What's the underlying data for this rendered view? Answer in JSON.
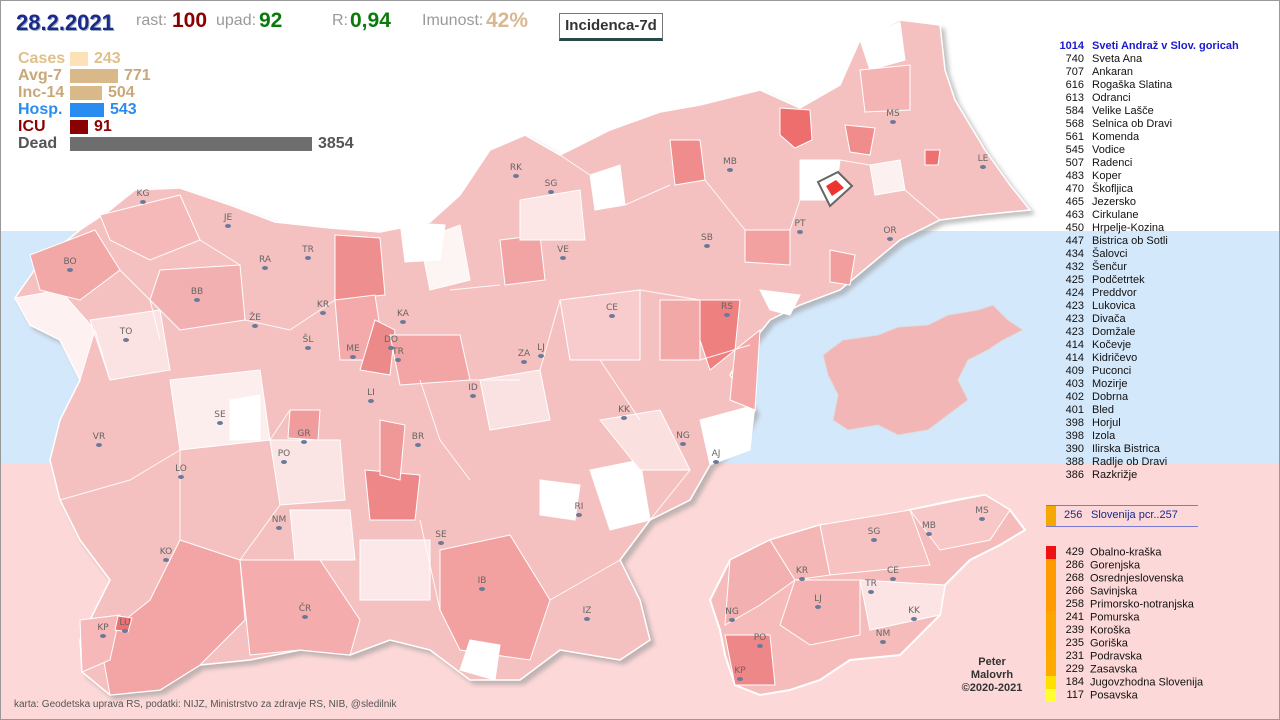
{
  "header": {
    "date": "28.2.2021",
    "rast_label": "rast:",
    "rast_value": "100",
    "upad_label": "upad:",
    "upad_value": "92",
    "r_label": "R:",
    "r_value": "0,94",
    "imunost_label": "Imunost:",
    "imunost_value": "42%",
    "incidence_button": "Incidenca-7d"
  },
  "stats": [
    {
      "label": "Cases",
      "value": "243",
      "color": "#fde2b8",
      "label_color": "#e0c08a",
      "val_color": "#e0c08a",
      "fraction": 0.063
    },
    {
      "label": "Avg-7",
      "value": "771",
      "color": "#d9b98a",
      "label_color": "#c8a878",
      "val_color": "#c8a878",
      "fraction": 0.2
    },
    {
      "label": "Inc-14",
      "value": "504",
      "color": "#d9b98a",
      "label_color": "#c8a878",
      "val_color": "#c8a878",
      "fraction": 0.131
    },
    {
      "label": "Hosp.",
      "value": "543",
      "color": "#2a8cf0",
      "label_color": "#2a8cf0",
      "val_color": "#2a8cf0",
      "fraction": 0.141
    },
    {
      "label": "ICU",
      "value": "91",
      "color": "#8b0000",
      "label_color": "#8b0000",
      "val_color": "#8b0000",
      "fraction": 0.024
    },
    {
      "label": "Dead",
      "value": "3854",
      "color": "#6e6e6e",
      "label_color": "#555",
      "val_color": "#555",
      "fraction": 1.0
    }
  ],
  "ranking": [
    {
      "v": "1014",
      "name": "Sveti Andraž v Slov. goricah",
      "highlight": true
    },
    {
      "v": "740",
      "name": "Sveta Ana"
    },
    {
      "v": "707",
      "name": "Ankaran"
    },
    {
      "v": "616",
      "name": "Rogaška Slatina"
    },
    {
      "v": "613",
      "name": "Odranci"
    },
    {
      "v": "584",
      "name": "Velike Lašče"
    },
    {
      "v": "568",
      "name": "Selnica ob Dravi"
    },
    {
      "v": "561",
      "name": "Komenda"
    },
    {
      "v": "545",
      "name": "Vodice"
    },
    {
      "v": "507",
      "name": "Radenci"
    },
    {
      "v": "483",
      "name": "Koper"
    },
    {
      "v": "470",
      "name": "Škofljica"
    },
    {
      "v": "465",
      "name": "Jezersko"
    },
    {
      "v": "463",
      "name": "Cirkulane"
    },
    {
      "v": "450",
      "name": "Hrpelje-Kozina"
    },
    {
      "v": "447",
      "name": "Bistrica ob Sotli"
    },
    {
      "v": "434",
      "name": "Šalovci"
    },
    {
      "v": "432",
      "name": "Šenčur"
    },
    {
      "v": "425",
      "name": "Podčetrtek"
    },
    {
      "v": "424",
      "name": "Preddvor"
    },
    {
      "v": "423",
      "name": "Lukovica"
    },
    {
      "v": "423",
      "name": "Divača"
    },
    {
      "v": "423",
      "name": "Domžale"
    },
    {
      "v": "414",
      "name": "Kočevje"
    },
    {
      "v": "414",
      "name": "Kidričevo"
    },
    {
      "v": "409",
      "name": "Puconci"
    },
    {
      "v": "403",
      "name": "Mozirje"
    },
    {
      "v": "402",
      "name": "Dobrna"
    },
    {
      "v": "401",
      "name": "Bled"
    },
    {
      "v": "398",
      "name": "Horjul"
    },
    {
      "v": "398",
      "name": "Izola"
    },
    {
      "v": "390",
      "name": "Ilirska Bistrica"
    },
    {
      "v": "388",
      "name": "Radlje ob Dravi"
    },
    {
      "v": "386",
      "name": "Razkrižje"
    }
  ],
  "national": {
    "v": "256",
    "name": "Slovenija  pcr..257",
    "color": "#f5a800"
  },
  "regions": [
    {
      "v": "429",
      "name": "Obalno-kraška",
      "color": "#ee1111"
    },
    {
      "v": "286",
      "name": "Gorenjska",
      "color": "#ff9a00"
    },
    {
      "v": "268",
      "name": "Osrednjeslovenska",
      "color": "#ff9a00"
    },
    {
      "v": "266",
      "name": "Savinjska",
      "color": "#ff9a00"
    },
    {
      "v": "258",
      "name": "Primorsko-notranjska",
      "color": "#ff9a00"
    },
    {
      "v": "241",
      "name": "Pomurska",
      "color": "#ffa500"
    },
    {
      "v": "239",
      "name": "Koroška",
      "color": "#ffa500"
    },
    {
      "v": "235",
      "name": "Goriška",
      "color": "#ffa500"
    },
    {
      "v": "231",
      "name": "Podravska",
      "color": "#ffaa00"
    },
    {
      "v": "229",
      "name": "Zasavska",
      "color": "#ffaa00"
    },
    {
      "v": "184",
      "name": "Jugovzhodna Slovenija",
      "color": "#ffe000"
    },
    {
      "v": "117",
      "name": "Posavska",
      "color": "#ffff33"
    }
  ],
  "map_labels": [
    "KG",
    "JE",
    "RK",
    "SG",
    "MB",
    "MS",
    "LE",
    "BO",
    "RA",
    "TR",
    "VE",
    "SB",
    "PT",
    "OR",
    "BB",
    "KR",
    "KA",
    "CE",
    "RS",
    "TO",
    "ŽE",
    "ŠL",
    "ME",
    "DO",
    "TR",
    "ZA",
    "LJ",
    "LI",
    "ID",
    "SE",
    "KK",
    "NG",
    "VR",
    "GR",
    "BR",
    "AJ",
    "LO",
    "PO",
    "NM",
    "RI",
    "SE",
    "KO",
    "IB",
    "ČR",
    "IZ",
    "KP",
    "LU"
  ],
  "region_labels": [
    "MS",
    "SG",
    "MB",
    "KR",
    "CE",
    "TR",
    "LJ",
    "NG",
    "KK",
    "PO",
    "NM",
    "KP"
  ],
  "credit": [
    "Peter",
    "Malovrh",
    "©2020-2021"
  ],
  "source": "karta: Geodetska uprava RS,  podatki: NIJZ, Ministrstvo za zdravje RS, NIB, @sledilnik"
}
